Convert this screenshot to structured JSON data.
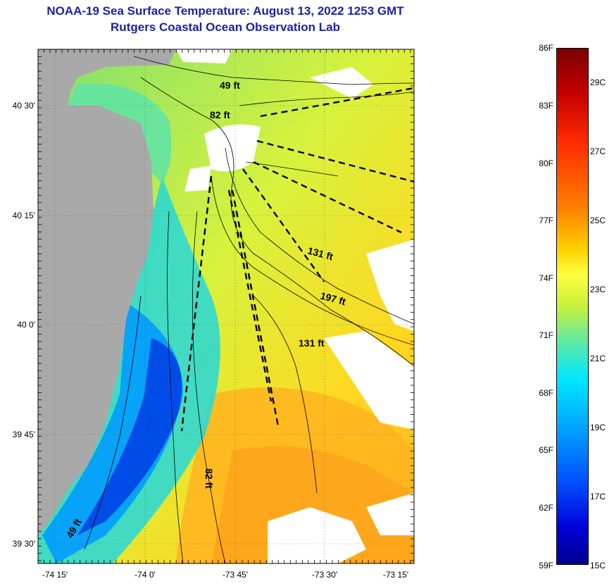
{
  "header": {
    "title": "NOAA-19 Sea Surface Temperature:  August 13, 2022 1253 GMT",
    "subtitle": "Rutgers Coastal Ocean Observation Lab"
  },
  "map": {
    "lat_labels": [
      "40 30'",
      "40 15'",
      "40 0'",
      "39 45'",
      "39 30'"
    ],
    "lon_labels": [
      "-74 15'",
      "-74 0'",
      "-73 45'",
      "-73 30'",
      "-73 15'"
    ],
    "depth_labels": [
      "49 ft",
      "82 ft",
      "131 ft",
      "197 ft",
      "131 ft",
      "82 ft",
      "49 ft"
    ],
    "colors": {
      "land": "#a9a9a9",
      "cloud": "#ffffff"
    }
  },
  "colorbar": {
    "fahrenheit": [
      "86F",
      "83F",
      "80F",
      "77F",
      "74F",
      "71F",
      "68F",
      "65F",
      "62F",
      "59F"
    ],
    "celsius": [
      "29C",
      "27C",
      "25C",
      "23C",
      "21C",
      "19C",
      "17C",
      "15C"
    ]
  }
}
